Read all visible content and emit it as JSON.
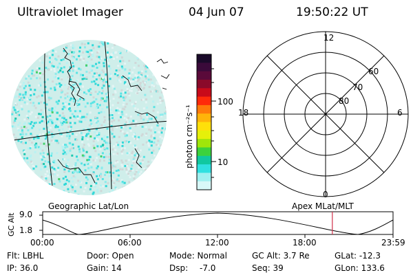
{
  "header": {
    "instrument": "Ultraviolet Imager",
    "date": "04 Jun 07",
    "time": "19:50:22 UT"
  },
  "colorbar": {
    "unit_label": "photon cm⁻²s⁻¹",
    "ticks": [
      "100",
      "10"
    ],
    "colors": [
      "#1a0a2a",
      "#3a0a3a",
      "#5a0a3a",
      "#8a0a2a",
      "#c80a1a",
      "#ff2a0a",
      "#ff7a0a",
      "#ffb40a",
      "#ffe00a",
      "#e6f00a",
      "#a0e60a",
      "#3cd23c",
      "#10c8a0",
      "#30e0e0",
      "#a0f0f0",
      "#d8f8f8"
    ]
  },
  "polar_plot": {
    "top_label": "12",
    "bottom_label": "0",
    "left_label": "18",
    "right_label": "6",
    "lat_labels": [
      "60",
      "70",
      "80"
    ]
  },
  "timeline": {
    "left_title": "Geographic Lat/Lon",
    "right_title": "Apex  MLat/MLT",
    "axis_label": "GC Alt",
    "y_ticks": [
      "9.0",
      "1.8"
    ],
    "x_ticks": [
      "00:00",
      "06:00",
      "12:00",
      "18:00",
      "23:59"
    ],
    "marker_time_hours": 19.84
  },
  "info": {
    "filter": "Flt: LBHL",
    "door": "Door: Open",
    "mode": "Mode: Normal",
    "gc_alt": "GC Alt: 3.7 Re",
    "glat": "GLat: -12.3",
    "ip": "IP: 36.0",
    "gain": "Gain: 14",
    "dsp_label": "Dsp:",
    "dsp_value": "-7.0",
    "seq": "Seq: 39",
    "glon": "GLon: 133.6"
  }
}
